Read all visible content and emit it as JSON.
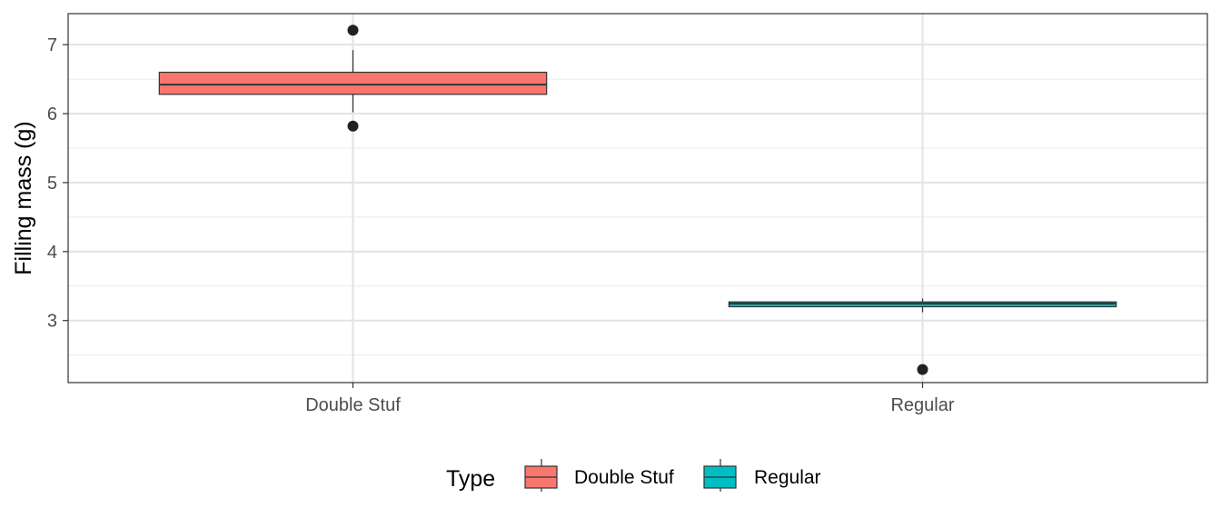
{
  "chart_data": {
    "type": "boxplot",
    "title": "",
    "xlabel": "",
    "ylabel": "Filling mass (g)",
    "ylim": [
      2.1,
      7.45
    ],
    "y_ticks": [
      3,
      4,
      5,
      6,
      7
    ],
    "grid": true,
    "categories": [
      "Double Stuf",
      "Regular"
    ],
    "boxes": [
      {
        "category": "Double Stuf",
        "whisker_low": 6.02,
        "q1": 6.28,
        "median": 6.42,
        "q3": 6.6,
        "whisker_high": 6.92,
        "outliers": [
          7.21,
          5.82
        ]
      },
      {
        "category": "Regular",
        "whisker_low": 3.12,
        "q1": 3.2,
        "median": 3.245,
        "q3": 3.27,
        "whisker_high": 3.32,
        "outliers": [
          2.29
        ]
      }
    ],
    "legend": {
      "title": "Type",
      "position": "bottom",
      "items": [
        {
          "label": "Double Stuf",
          "color": "#F8766D"
        },
        {
          "label": "Regular",
          "color": "#00BFC4"
        }
      ]
    }
  }
}
